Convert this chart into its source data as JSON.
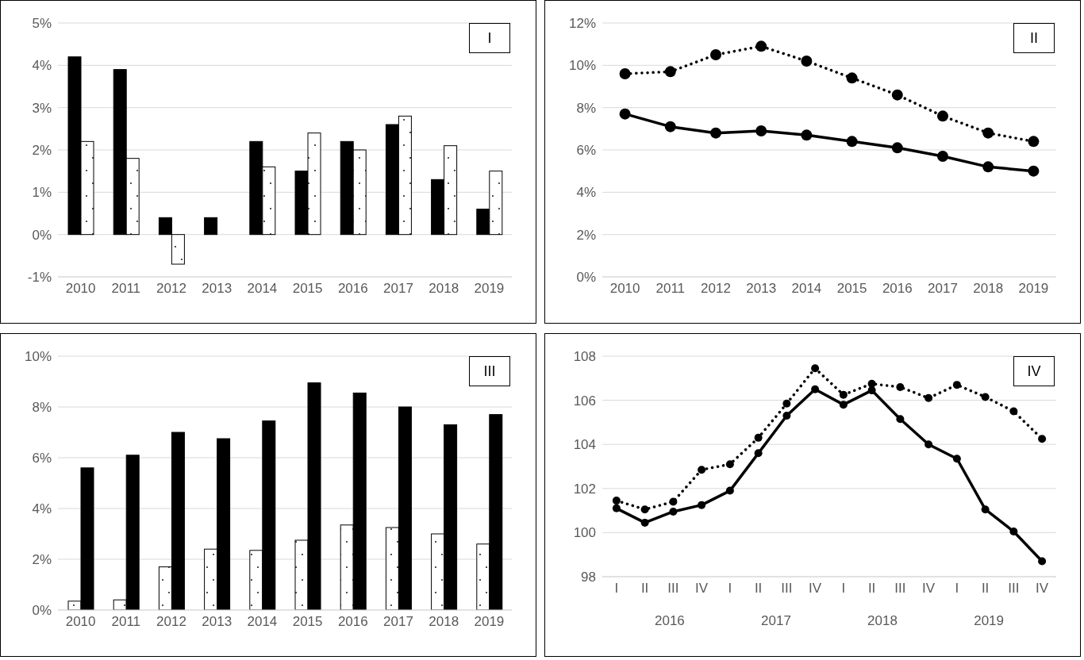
{
  "chart_data": [
    {
      "type": "bar",
      "title": "I",
      "categories": [
        "2010",
        "2011",
        "2012",
        "2013",
        "2014",
        "2015",
        "2016",
        "2017",
        "2018",
        "2019"
      ],
      "series": [
        {
          "color": "#000000",
          "values": [
            4.2,
            3.9,
            0.4,
            0.4,
            2.2,
            1.5,
            2.2,
            2.6,
            1.3,
            0.6
          ]
        },
        {
          "color": "#ffffff",
          "values": [
            2.2,
            1.8,
            -0.7,
            null,
            1.6,
            2.4,
            2.0,
            2.8,
            2.1,
            1.5
          ]
        }
      ],
      "ylim": [
        -1,
        5
      ],
      "yticks": [
        {
          "value": -1,
          "label": "-1%"
        },
        {
          "value": 0,
          "label": "0%"
        },
        {
          "value": 1,
          "label": "1%"
        },
        {
          "value": 2,
          "label": "2%"
        },
        {
          "value": 3,
          "label": "3%"
        },
        {
          "value": 4,
          "label": "4%"
        },
        {
          "value": 5,
          "label": "5%"
        }
      ],
      "grid": "y",
      "legend": false
    },
    {
      "type": "line",
      "title": "II",
      "categories": [
        "2010",
        "2011",
        "2012",
        "2013",
        "2014",
        "2015",
        "2016",
        "2017",
        "2018",
        "2019"
      ],
      "marker": "circle",
      "series": [
        {
          "color": "#000000",
          "line_style": "solid",
          "values": [
            7.7,
            7.1,
            6.8,
            6.9,
            6.7,
            6.4,
            6.1,
            5.7,
            5.2,
            5.0
          ]
        },
        {
          "color": "#000000",
          "line_style": "dotted",
          "values": [
            9.6,
            9.7,
            10.5,
            10.9,
            10.2,
            9.4,
            8.6,
            7.6,
            6.8,
            6.4
          ]
        }
      ],
      "ylim": [
        0,
        12
      ],
      "yticks": [
        {
          "value": 0,
          "label": "0%"
        },
        {
          "value": 2,
          "label": "2%"
        },
        {
          "value": 4,
          "label": "4%"
        },
        {
          "value": 6,
          "label": "6%"
        },
        {
          "value": 8,
          "label": "8%"
        },
        {
          "value": 10,
          "label": "10%"
        },
        {
          "value": 12,
          "label": "12%"
        }
      ],
      "grid": "y",
      "legend": false
    },
    {
      "type": "bar",
      "title": "III",
      "categories": [
        "2010",
        "2011",
        "2012",
        "2013",
        "2014",
        "2015",
        "2016",
        "2017",
        "2018",
        "2019"
      ],
      "series": [
        {
          "color": "#ffffff",
          "values": [
            0.35,
            0.4,
            1.7,
            2.4,
            2.35,
            2.75,
            3.35,
            3.25,
            3.0,
            2.6
          ]
        },
        {
          "color": "#000000",
          "values": [
            5.6,
            6.1,
            7.0,
            6.75,
            7.45,
            8.95,
            8.55,
            8.0,
            7.3,
            7.7
          ]
        }
      ],
      "ylim": [
        0,
        10
      ],
      "yticks": [
        {
          "value": 0,
          "label": "0%"
        },
        {
          "value": 2,
          "label": "2%"
        },
        {
          "value": 4,
          "label": "4%"
        },
        {
          "value": 6,
          "label": "6%"
        },
        {
          "value": 8,
          "label": "8%"
        },
        {
          "value": 10,
          "label": "10%"
        }
      ],
      "grid": "y",
      "legend": false
    },
    {
      "type": "line",
      "title": "IV",
      "categories": [
        "I",
        "II",
        "III",
        "IV",
        "I",
        "II",
        "III",
        "IV",
        "I",
        "II",
        "III",
        "IV",
        "I",
        "II",
        "III",
        "IV"
      ],
      "annotations": [
        "2016",
        "2017",
        "2018",
        "2019"
      ],
      "marker": "circle",
      "series": [
        {
          "color": "#000000",
          "line_style": "solid",
          "values": [
            101.1,
            100.45,
            100.95,
            101.25,
            101.9,
            103.6,
            105.3,
            106.5,
            105.8,
            106.45,
            105.15,
            104.0,
            103.35,
            101.05,
            100.05,
            98.7
          ]
        },
        {
          "color": "#000000",
          "line_style": "dotted",
          "values": [
            101.45,
            101.05,
            101.4,
            102.85,
            103.1,
            104.3,
            105.85,
            107.45,
            106.25,
            106.75,
            106.6,
            106.1,
            106.7,
            106.15,
            105.5,
            104.25
          ]
        }
      ],
      "ylim": [
        98,
        108
      ],
      "yticks": [
        98,
        100,
        102,
        104,
        106,
        108
      ],
      "grid": "y",
      "legend": false
    }
  ]
}
